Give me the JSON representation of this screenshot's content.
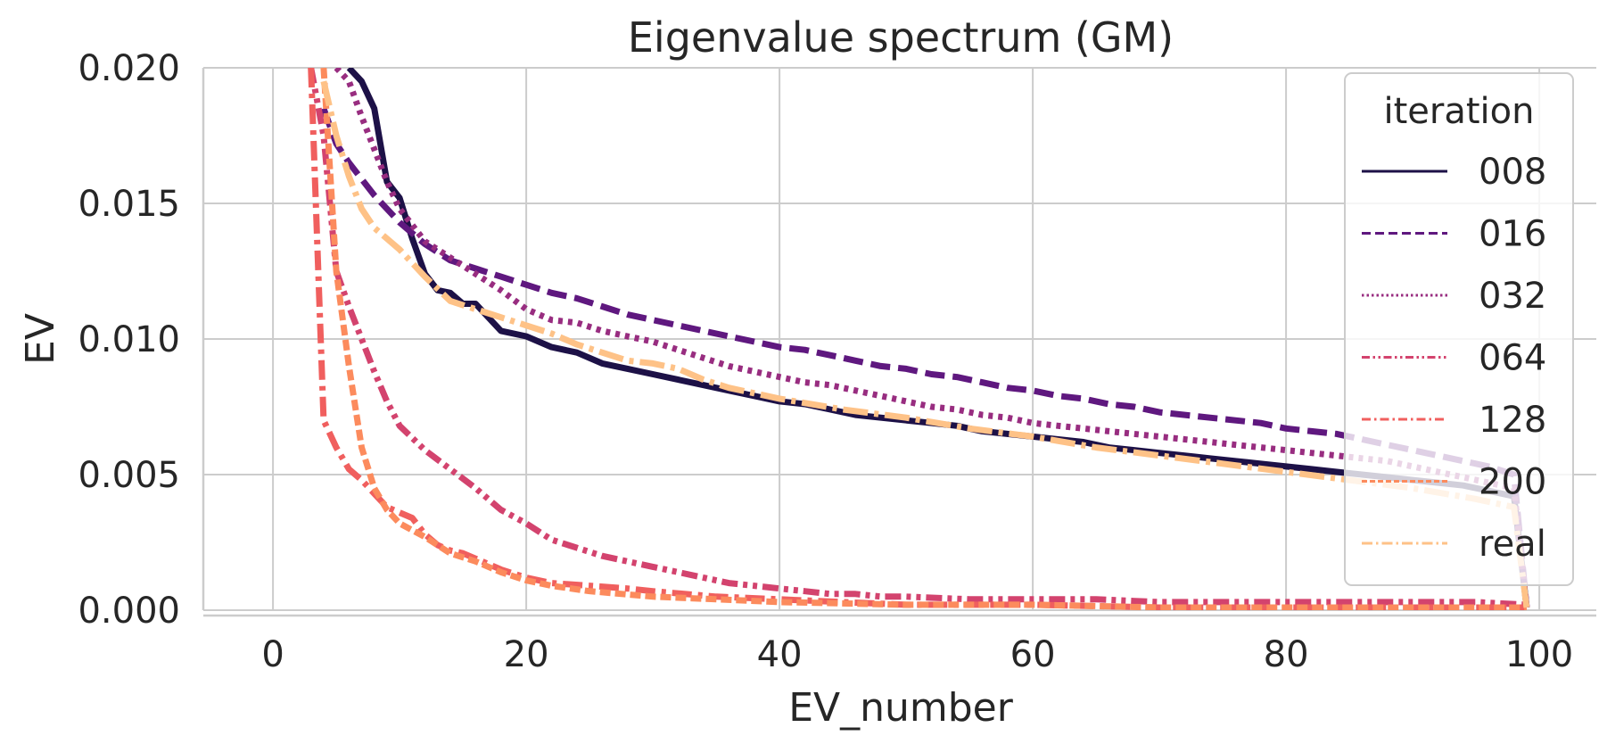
{
  "chart_data": {
    "type": "line",
    "title": "Eigenvalue spectrum (GM)",
    "xlabel": "EV_number",
    "ylabel": "EV",
    "xlim": [
      -5.5,
      104.5
    ],
    "ylim": [
      0,
      0.02
    ],
    "x_ticks": [
      0,
      20,
      40,
      60,
      80,
      100
    ],
    "x_tick_labels": [
      "0",
      "20",
      "40",
      "60",
      "80",
      "100"
    ],
    "y_ticks": [
      0,
      0.005,
      0.01,
      0.015,
      0.02
    ],
    "y_tick_labels": [
      "0.000",
      "0.005",
      "0.010",
      "0.015",
      "0.020"
    ],
    "grid": true,
    "legend": {
      "title": "iteration",
      "position": "top-right"
    },
    "series": [
      {
        "name": "008",
        "color": "#1d1147",
        "dash": "solid",
        "x": [
          6,
          7,
          8,
          9,
          10,
          11,
          12,
          13,
          14,
          15,
          16,
          18,
          20,
          22,
          24,
          26,
          28,
          30,
          32,
          34,
          36,
          38,
          40,
          42,
          44,
          46,
          48,
          50,
          52,
          54,
          56,
          58,
          60,
          62,
          64,
          66,
          68,
          70,
          72,
          74,
          76,
          78,
          80,
          82,
          84,
          86,
          88,
          90,
          92,
          94,
          96,
          98,
          99
        ],
        "y": [
          0.02,
          0.0195,
          0.0185,
          0.0158,
          0.0152,
          0.0137,
          0.0124,
          0.0118,
          0.0117,
          0.0113,
          0.0113,
          0.0103,
          0.0101,
          0.0097,
          0.0095,
          0.0091,
          0.0089,
          0.0087,
          0.0085,
          0.0083,
          0.0081,
          0.0079,
          0.0077,
          0.0076,
          0.0074,
          0.0072,
          0.0071,
          0.007,
          0.0069,
          0.0068,
          0.0066,
          0.0065,
          0.0064,
          0.0063,
          0.0062,
          0.006,
          0.0059,
          0.0058,
          0.0057,
          0.0056,
          0.0055,
          0.0054,
          0.0053,
          0.0052,
          0.0051,
          0.005,
          0.0049,
          0.0048,
          0.0047,
          0.0046,
          0.0044,
          0.0042,
          0.0001
        ]
      },
      {
        "name": "016",
        "color": "#5f187f",
        "dash": "dashed",
        "x": [
          4,
          5,
          6,
          8,
          10,
          12,
          14,
          16,
          18,
          20,
          22,
          24,
          26,
          28,
          30,
          32,
          34,
          36,
          38,
          40,
          42,
          44,
          46,
          48,
          50,
          52,
          54,
          56,
          58,
          60,
          62,
          64,
          66,
          68,
          70,
          72,
          74,
          76,
          78,
          80,
          82,
          84,
          86,
          88,
          90,
          92,
          94,
          96,
          98,
          99
        ],
        "y": [
          0.0185,
          0.0172,
          0.0165,
          0.0153,
          0.0143,
          0.0135,
          0.0129,
          0.0126,
          0.0123,
          0.012,
          0.0117,
          0.0115,
          0.0112,
          0.0109,
          0.0107,
          0.0105,
          0.0103,
          0.0101,
          0.0099,
          0.0097,
          0.0096,
          0.0094,
          0.0092,
          0.009,
          0.0089,
          0.0087,
          0.0086,
          0.0084,
          0.0082,
          0.0081,
          0.0079,
          0.0078,
          0.0076,
          0.0075,
          0.0073,
          0.0072,
          0.0071,
          0.007,
          0.0069,
          0.0067,
          0.0066,
          0.0065,
          0.0063,
          0.0061,
          0.0059,
          0.0057,
          0.0055,
          0.0053,
          0.005,
          0.0001
        ]
      },
      {
        "name": "032",
        "color": "#982d80",
        "dash": "dotted",
        "x": [
          5,
          6,
          7,
          8,
          9,
          10,
          12,
          14,
          16,
          18,
          20,
          22,
          24,
          26,
          28,
          30,
          32,
          34,
          36,
          38,
          40,
          42,
          44,
          46,
          48,
          50,
          52,
          54,
          56,
          58,
          60,
          62,
          64,
          66,
          68,
          70,
          72,
          74,
          76,
          78,
          80,
          82,
          84,
          86,
          88,
          90,
          92,
          94,
          96,
          98,
          99
        ],
        "y": [
          0.02,
          0.0195,
          0.0182,
          0.017,
          0.0158,
          0.0148,
          0.0136,
          0.013,
          0.0124,
          0.0118,
          0.0111,
          0.0107,
          0.0106,
          0.0103,
          0.0101,
          0.0099,
          0.0096,
          0.0093,
          0.009,
          0.0088,
          0.0086,
          0.0084,
          0.0083,
          0.0081,
          0.0079,
          0.0077,
          0.0075,
          0.0074,
          0.0072,
          0.0071,
          0.0069,
          0.0068,
          0.0067,
          0.0066,
          0.0065,
          0.0064,
          0.0063,
          0.0062,
          0.0061,
          0.006,
          0.0059,
          0.0058,
          0.0057,
          0.0056,
          0.0055,
          0.0053,
          0.0051,
          0.0049,
          0.0047,
          0.0045,
          0.0001
        ]
      },
      {
        "name": "064",
        "color": "#d3436e",
        "dash": "dashdotdot",
        "x": [
          3,
          4,
          5,
          6,
          7,
          8,
          9,
          10,
          12,
          14,
          16,
          18,
          20,
          22,
          24,
          26,
          28,
          30,
          32,
          34,
          36,
          38,
          40,
          42,
          44,
          46,
          48,
          50,
          55,
          60,
          65,
          70,
          75,
          80,
          85,
          90,
          95,
          99
        ],
        "y": [
          0.02,
          0.0175,
          0.0125,
          0.0112,
          0.01,
          0.0088,
          0.0077,
          0.0068,
          0.0059,
          0.0052,
          0.0045,
          0.0037,
          0.0032,
          0.0026,
          0.0023,
          0.002,
          0.0018,
          0.0016,
          0.0014,
          0.0012,
          0.001,
          0.0009,
          0.0008,
          0.0007,
          0.0006,
          0.0006,
          0.0005,
          0.0005,
          0.0004,
          0.0004,
          0.0004,
          0.0003,
          0.0003,
          0.0003,
          0.0003,
          0.0003,
          0.0003,
          0.0002
        ]
      },
      {
        "name": "128",
        "color": "#f05f5e",
        "dash": "dashdot",
        "x": [
          3,
          4,
          5,
          6,
          7,
          8,
          9,
          10,
          11,
          12,
          13,
          14,
          15,
          16,
          18,
          20,
          22,
          25,
          28,
          30,
          35,
          40,
          45,
          50,
          60,
          70,
          80,
          90,
          99
        ],
        "y": [
          0.02,
          0.007,
          0.006,
          0.0052,
          0.0048,
          0.0043,
          0.0038,
          0.0036,
          0.0034,
          0.0028,
          0.0024,
          0.0022,
          0.0021,
          0.0019,
          0.0015,
          0.0012,
          0.001,
          0.0009,
          0.0008,
          0.0007,
          0.0005,
          0.0004,
          0.0003,
          0.0002,
          0.0002,
          0.0001,
          0.0001,
          0.0001,
          0.0001
        ]
      },
      {
        "name": "200",
        "color": "#fc8b5d",
        "dash": "densedash",
        "x": [
          4,
          5,
          6,
          7,
          8,
          9,
          10,
          12,
          14,
          16,
          18,
          20,
          22,
          25,
          30,
          35,
          40,
          50,
          60,
          70,
          80,
          90,
          99
        ],
        "y": [
          0.02,
          0.0125,
          0.009,
          0.006,
          0.0045,
          0.0037,
          0.0032,
          0.0027,
          0.0021,
          0.0018,
          0.0014,
          0.0011,
          0.0009,
          0.0007,
          0.0005,
          0.0004,
          0.0003,
          0.0002,
          0.0002,
          0.0001,
          0.0001,
          0.0001,
          0.0001
        ]
      },
      {
        "name": "real",
        "color": "#fec287",
        "dash": "longdashdot",
        "x": [
          4,
          5,
          6,
          7,
          8,
          9,
          10,
          12,
          14,
          16,
          18,
          20,
          22,
          24,
          26,
          28,
          30,
          32,
          34,
          36,
          38,
          40,
          45,
          50,
          55,
          60,
          65,
          70,
          75,
          80,
          85,
          90,
          95,
          98,
          99
        ],
        "y": [
          0.0195,
          0.0175,
          0.016,
          0.0148,
          0.0141,
          0.0137,
          0.0133,
          0.0123,
          0.0114,
          0.0111,
          0.0108,
          0.0105,
          0.0102,
          0.0098,
          0.0095,
          0.0092,
          0.0091,
          0.0089,
          0.0085,
          0.0082,
          0.008,
          0.0078,
          0.0074,
          0.0071,
          0.0067,
          0.0064,
          0.006,
          0.0057,
          0.0054,
          0.0051,
          0.0048,
          0.0045,
          0.0041,
          0.0038,
          0.0001
        ]
      }
    ]
  }
}
